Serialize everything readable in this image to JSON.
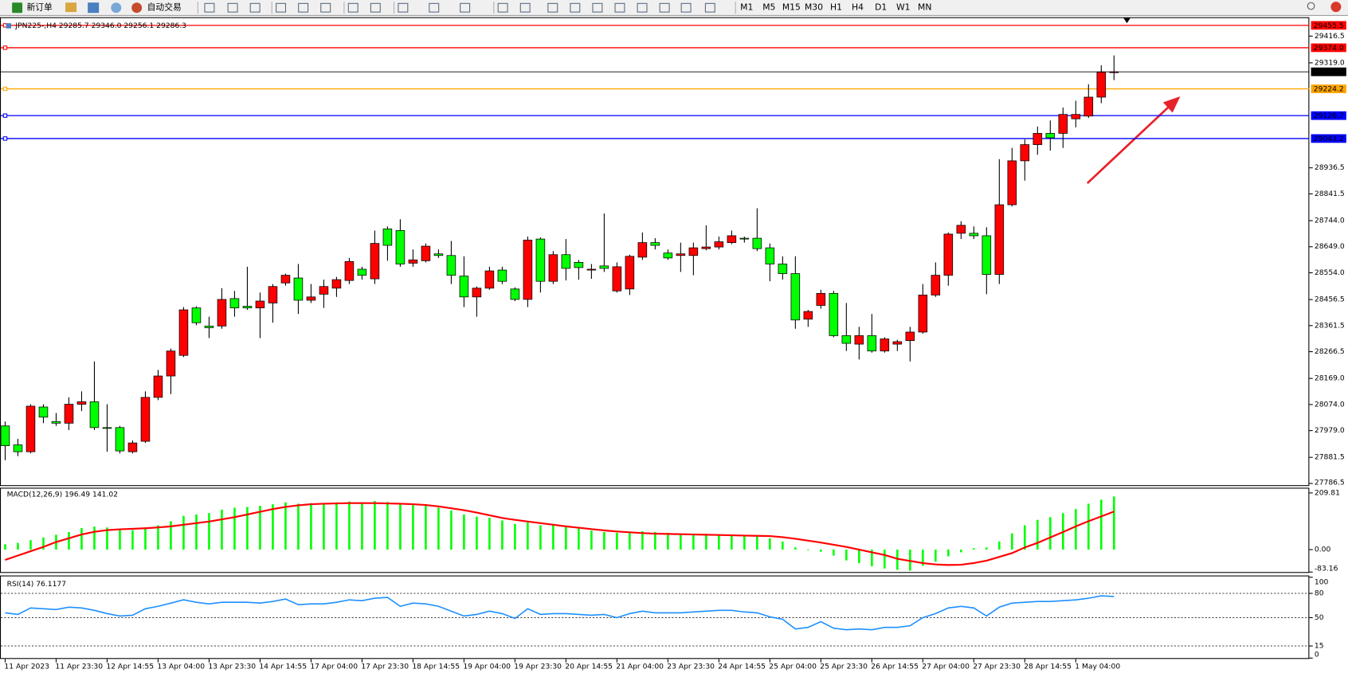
{
  "toolbar": {
    "new_order": "新订单",
    "auto_trading": "自动交易",
    "timeframes": [
      "M1",
      "M5",
      "M15",
      "M30",
      "H1",
      "H4",
      "D1",
      "W1",
      "MN"
    ]
  },
  "chart_data": [
    {
      "type": "candlestick",
      "title": "JPN225-,H4 29285.7 29346.0 29256.1 29286.3",
      "up_color": "#ff0000",
      "down_color": "#00ff00",
      "categories": [
        "11 Apr 2023",
        null,
        null,
        null,
        "11 Apr 23:30",
        null,
        null,
        null,
        "12 Apr 14:55",
        null,
        null,
        null,
        "13 Apr 04:00",
        null,
        null,
        null,
        "13 Apr 23:30",
        null,
        null,
        null,
        "14 Apr 14:55",
        null,
        null,
        null,
        "17 Apr 04:00",
        null,
        null,
        null,
        "17 Apr 23:30",
        null,
        null,
        null,
        "18 Apr 14:55",
        null,
        null,
        null,
        "19 Apr 04:00",
        null,
        null,
        null,
        "19 Apr 23:30",
        null,
        null,
        null,
        "20 Apr 14:55",
        null,
        null,
        null,
        "21 Apr 04:00",
        null,
        null,
        null,
        "23 Apr 23:30",
        null,
        null,
        null,
        "24 Apr 14:55",
        null,
        null,
        null,
        "25 Apr 04:00",
        null,
        null,
        null,
        "25 Apr 23:30",
        null,
        null,
        null,
        "26 Apr 14:55",
        null,
        null,
        null,
        "27 Apr 04:00",
        null,
        null,
        null,
        "27 Apr 23:30",
        null,
        null,
        null,
        "28 Apr 14:55",
        null,
        null,
        null,
        "1 May 04:00",
        null,
        null,
        null
      ],
      "open": [
        27996,
        27927,
        27902,
        28065,
        28012,
        28006,
        28075,
        28084,
        27990,
        27990,
        27902,
        27940,
        28100,
        28178,
        28253,
        28426,
        28360,
        28360,
        28460,
        28432,
        28426,
        28444,
        28517,
        28535,
        28454,
        28476,
        28498,
        28526,
        28567,
        28532,
        28714,
        28708,
        28589,
        28598,
        28623,
        28617,
        28542,
        28466,
        28498,
        28564,
        28495,
        28457,
        28677,
        28523,
        28620,
        28592,
        28567,
        28579,
        28488,
        28495,
        28611,
        28664,
        28626,
        28617,
        28617,
        28642,
        28648,
        28664,
        28680,
        28680,
        28645,
        28586,
        28551,
        28385,
        28435,
        28479,
        28325,
        28294,
        28325,
        28269,
        28294,
        28307,
        28338,
        28473,
        28545,
        28698,
        28698,
        28689,
        28548,
        28802,
        28962,
        29021,
        29062,
        29062,
        29115,
        29125,
        29194,
        29285.7
      ],
      "high": [
        28012,
        27949,
        28075,
        28075,
        28043,
        28100,
        28122,
        28231,
        28075,
        27996,
        27943,
        28122,
        28200,
        28278,
        28429,
        28432,
        28394,
        28498,
        28488,
        28576,
        28482,
        28513,
        28551,
        28586,
        28513,
        28529,
        28539,
        28608,
        28576,
        28708,
        28723,
        28749,
        28639,
        28661,
        28639,
        28670,
        28614,
        28504,
        28576,
        28576,
        28501,
        28686,
        28683,
        28633,
        28677,
        28601,
        28586,
        28770,
        28592,
        28620,
        28701,
        28680,
        28639,
        28664,
        28664,
        28727,
        28686,
        28708,
        28686,
        28789,
        28661,
        28614,
        28614,
        28419,
        28492,
        28488,
        28444,
        28357,
        28404,
        28319,
        28310,
        28357,
        28513,
        28592,
        28701,
        28742,
        28723,
        28720,
        28968,
        29009,
        29040,
        29087,
        29109,
        29156,
        29181,
        29241,
        29310,
        29346.0
      ],
      "low": [
        27871,
        27886,
        27896,
        28006,
        27996,
        27981,
        28050,
        27981,
        27902,
        27896,
        27896,
        27934,
        28090,
        28112,
        28247,
        28363,
        28316,
        28350,
        28394,
        28419,
        28316,
        28372,
        28507,
        28404,
        28444,
        28426,
        28466,
        28513,
        28529,
        28513,
        28598,
        28576,
        28576,
        28592,
        28608,
        28513,
        28429,
        28394,
        28492,
        28513,
        28451,
        28429,
        28482,
        28513,
        28526,
        28529,
        28532,
        28557,
        28482,
        28473,
        28601,
        28639,
        28601,
        28557,
        28545,
        28636,
        28639,
        28658,
        28664,
        28633,
        28523,
        28529,
        28350,
        28357,
        28423,
        28319,
        28269,
        28238,
        28263,
        28263,
        28269,
        28231,
        28332,
        28466,
        28507,
        28677,
        28677,
        28476,
        28513,
        28796,
        28890,
        28984,
        28999,
        29009,
        29084,
        29118,
        29172,
        29256.1
      ],
      "close": [
        27924,
        27902,
        28068,
        28028,
        28006,
        28075,
        28084,
        27990,
        27987,
        27905,
        27934,
        28100,
        28178,
        28269,
        28419,
        28372,
        28354,
        28457,
        28426,
        28426,
        28451,
        28504,
        28545,
        28454,
        28466,
        28504,
        28529,
        28595,
        28545,
        28661,
        28654,
        28586,
        28601,
        28651,
        28617,
        28545,
        28466,
        28498,
        28561,
        28523,
        28457,
        28673,
        28523,
        28620,
        28570,
        28573,
        28567,
        28570,
        28576,
        28614,
        28664,
        28654,
        28608,
        28623,
        28645,
        28648,
        28667,
        28689,
        28677,
        28642,
        28586,
        28551,
        28382,
        28413,
        28479,
        28325,
        28297,
        28325,
        28269,
        28313,
        28303,
        28338,
        28473,
        28545,
        28695,
        28727,
        28689,
        28548,
        28802,
        28962,
        29021,
        29062,
        29046,
        29131,
        29131,
        29194,
        29285,
        29286.3
      ],
      "ylim": [
        27777,
        29479
      ],
      "yticks": [
        29416.5,
        {
          "value": 29319,
          "label": "29319.0"
        },
        28936.5,
        28841.5,
        {
          "value": 28744,
          "label": "28744.0"
        },
        {
          "value": 28649,
          "label": "28649.0"
        },
        {
          "value": 28554,
          "label": "28554.0"
        },
        28456.5,
        28361.5,
        28266.5,
        {
          "value": 28169,
          "label": "28169.0"
        },
        {
          "value": 28074,
          "label": "28074.0"
        },
        {
          "value": 27979,
          "label": "27979.0"
        },
        27881.5,
        27786.5
      ],
      "levels": [
        {
          "value": 29455.5,
          "color": "#ff0000"
        },
        {
          "value": 29374,
          "label": "29374.0",
          "color": "#ff0000"
        },
        {
          "value": 29286.3,
          "color": "#000000"
        },
        {
          "value": 29224.2,
          "color": "#ffa500"
        },
        {
          "value": 29126.7,
          "color": "#0000ff"
        },
        {
          "value": 29043.2,
          "color": "#0000ff"
        }
      ]
    },
    {
      "type": "macd",
      "title": "MACD(12,26,9) 196.49 141.02",
      "histogram_color": "#00ff00",
      "signal_color": "#ff0000",
      "histogram": [
        20,
        25,
        35,
        45,
        55,
        65,
        80,
        85,
        82,
        75,
        72,
        78,
        90,
        105,
        125,
        130,
        135,
        148,
        155,
        158,
        162,
        168,
        175,
        170,
        172,
        172,
        175,
        178,
        175,
        180,
        176,
        170,
        165,
        163,
        155,
        145,
        130,
        122,
        118,
        108,
        95,
        100,
        90,
        90,
        85,
        78,
        70,
        65,
        62,
        65,
        68,
        65,
        62,
        58,
        55,
        55,
        55,
        56,
        52,
        50,
        42,
        30,
        8,
        -2,
        -8,
        -22,
        -40,
        -50,
        -62,
        -70,
        -75,
        -78,
        -60,
        -45,
        -25,
        -10,
        5,
        8,
        30,
        60,
        90,
        110,
        120,
        135,
        150,
        170,
        185,
        196.49
      ],
      "signal": [
        -38,
        -22,
        -6,
        10,
        28,
        42,
        56,
        66,
        72,
        75,
        77,
        79,
        82,
        86,
        92,
        98,
        104,
        112,
        120,
        130,
        140,
        150,
        158,
        164,
        168,
        170,
        171,
        172,
        172,
        172,
        171,
        170,
        168,
        165,
        160,
        153,
        146,
        137,
        127,
        117,
        110,
        104,
        98,
        92,
        86,
        81,
        76,
        71,
        67,
        64,
        61,
        59,
        58,
        57,
        56,
        55,
        54,
        53,
        52,
        51,
        50,
        46,
        40,
        33,
        26,
        18,
        10,
        0,
        -10,
        -20,
        -34,
        -42,
        -50,
        -55,
        -57,
        -56,
        -50,
        -41,
        -27,
        -13,
        8,
        25,
        45,
        65,
        86,
        105,
        123,
        141.02
      ],
      "ylim": [
        -83.16,
        229
      ],
      "yticks": [
        209.81,
        {
          "value": 0,
          "label": "0.00"
        },
        -83.16
      ]
    },
    {
      "type": "line",
      "title": "RSI(14) 76.1177",
      "color": "#1e90ff",
      "values": [
        56,
        54,
        62,
        61,
        60,
        63,
        62,
        59,
        55,
        52,
        53,
        61,
        64,
        68,
        72,
        69,
        67,
        69,
        69,
        69,
        68,
        70,
        73,
        66,
        67,
        67,
        69,
        72,
        71,
        74,
        75,
        64,
        68,
        67,
        64,
        58,
        52,
        54,
        58,
        55,
        49,
        61,
        54,
        55,
        55,
        54,
        53,
        54,
        50,
        55,
        58,
        56,
        56,
        56,
        57,
        58,
        59,
        59,
        57,
        56,
        51,
        48,
        36,
        38,
        45,
        37,
        35,
        36,
        35,
        38,
        38,
        40,
        50,
        55,
        62,
        64,
        62,
        52,
        63,
        68,
        69,
        70,
        70,
        71,
        72,
        74,
        77,
        76.1177
      ],
      "ylim": [
        0,
        100
      ],
      "yticks": [
        100,
        80,
        50,
        15,
        0
      ],
      "levels": [
        80,
        50,
        15
      ]
    }
  ]
}
